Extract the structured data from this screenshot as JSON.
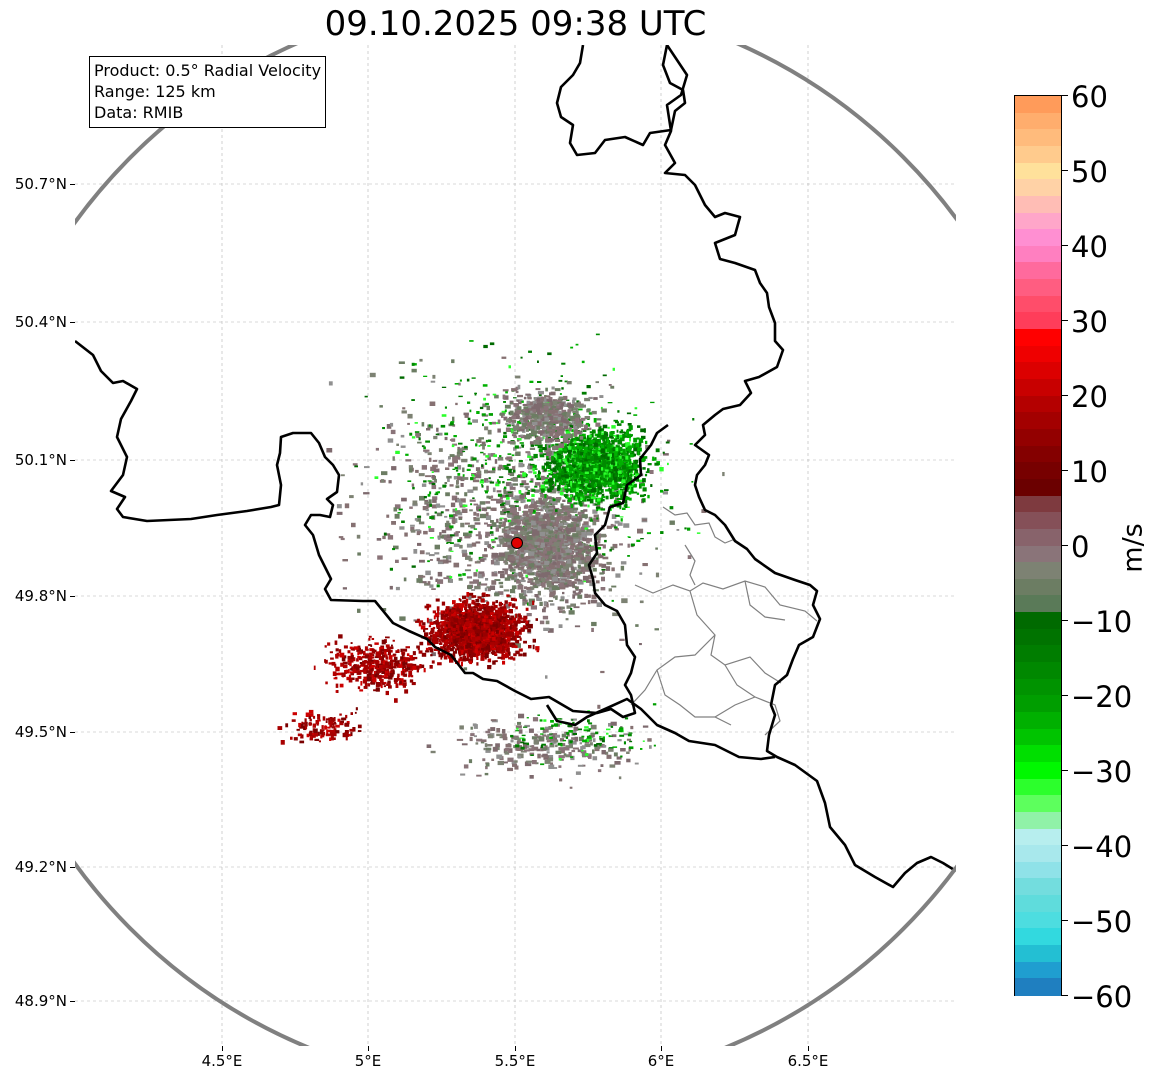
{
  "title": "09.10.2025 09:38 UTC",
  "info_box": {
    "product": "Product: 0.5° Radial Velocity",
    "range": "Range: 125 km",
    "data": "Data: RMIB"
  },
  "axes": {
    "lat_labels": [
      "50.7°N",
      "50.4°N",
      "50.1°N",
      "49.8°N",
      "49.5°N",
      "49.2°N",
      "48.9°N"
    ],
    "lon_labels": [
      "4.5°E",
      "5°E",
      "5.5°E",
      "6°E",
      "6.5°E"
    ]
  },
  "colorbar": {
    "unit": "m/s",
    "tick_labels": [
      "60",
      "50",
      "40",
      "30",
      "20",
      "10",
      "0",
      "−10",
      "−20",
      "−30",
      "−40",
      "−50",
      "−60"
    ],
    "vmin": -60,
    "vmax": 60,
    "colors_high_to_low": [
      "#ff9b5a",
      "#ffad6d",
      "#ffbb7c",
      "#ffcb8d",
      "#ffe19b",
      "#ffd2a6",
      "#ffbdb5",
      "#ffa6c9",
      "#ff8fd2",
      "#ff7fc0",
      "#ff6a9d",
      "#ff5d81",
      "#ff4d6a",
      "#ff3d5a",
      "#ff0000",
      "#ef0000",
      "#dc0000",
      "#c80000",
      "#b40000",
      "#a30000",
      "#930000",
      "#840000",
      "#770000",
      "#6b0000",
      "#7e3a3f",
      "#855058",
      "#88636b",
      "#8a7479",
      "#7d8273",
      "#6c7d63",
      "#5a7a58",
      "#006a00",
      "#007300",
      "#007d00",
      "#008800",
      "#009300",
      "#009e00",
      "#00b000",
      "#00c400",
      "#00df00",
      "#00f800",
      "#2cff2c",
      "#5dff5d",
      "#90f2a8",
      "#b7eeee",
      "#a8e8ec",
      "#8fe2e8",
      "#73ddde",
      "#5fdcdc",
      "#4ddde0",
      "#32d9df",
      "#23bfd3",
      "#1f9ed0",
      "#1f7fc0"
    ]
  },
  "colors": {
    "border_heavy": "#000000",
    "border_light": "#7f7f7f",
    "range_ring": "#808080",
    "radar_site": "#e00000",
    "receding": "#990000",
    "approaching": "#008a00",
    "near_zero": "#867172"
  }
}
